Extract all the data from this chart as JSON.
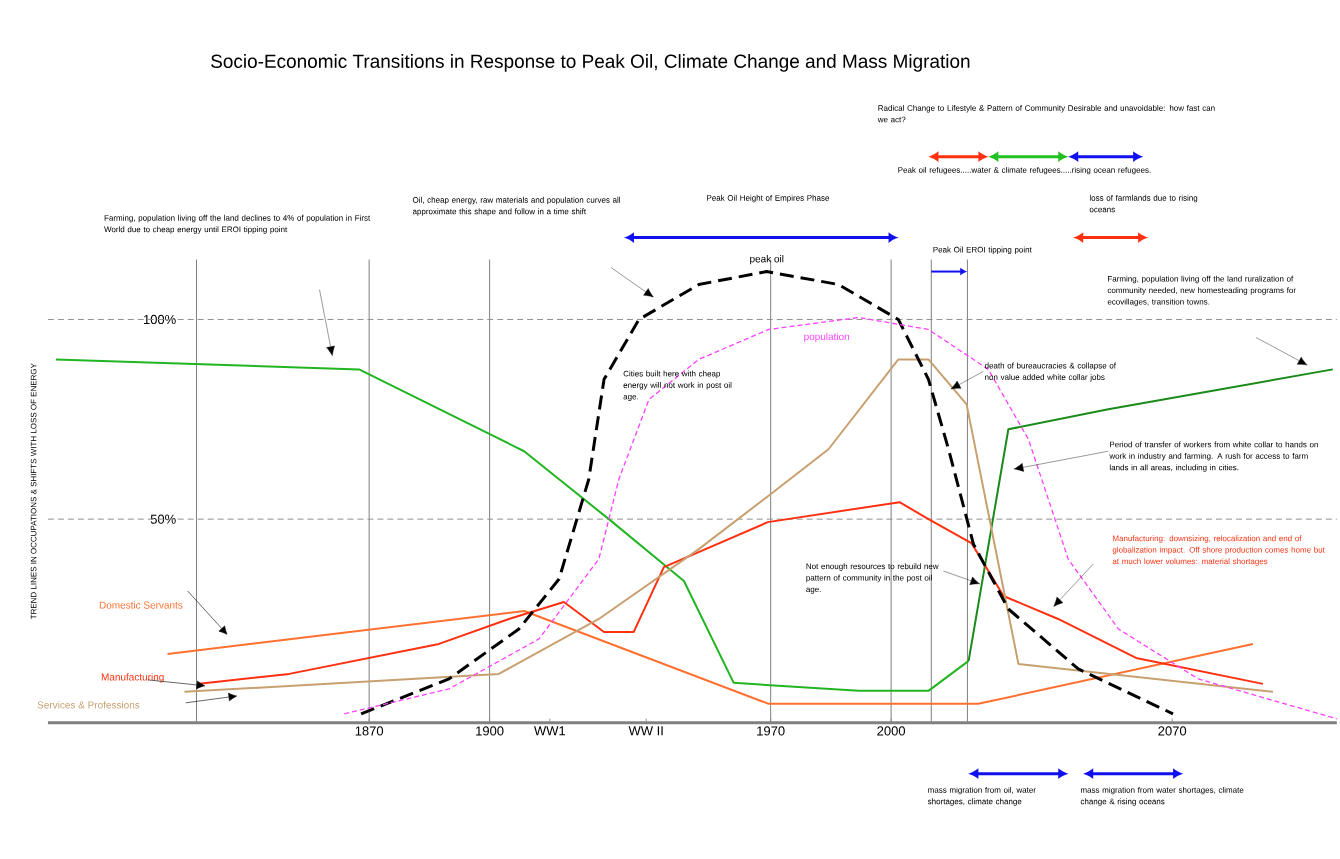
{
  "chart_data": {
    "type": "line",
    "title": "Socio-Economic Transitions in Response to Peak Oil, Climate Change and Mass Migration",
    "ylabel": "TREND LINES IN OCCUPATIONS & SHIFTS WITH LOSS OF ENERGY",
    "xlim": [
      1790,
      2111
    ],
    "ylim": [
      -1,
      115
    ],
    "xticks": [
      1870,
      1900,
      {
        "value": 1915,
        "label": "WW1"
      },
      {
        "value": 1939,
        "label": "WW II"
      },
      1970,
      2000,
      2070
    ],
    "yticks": [
      {
        "value": 50,
        "label": "50%"
      },
      {
        "value": 100,
        "label": "100%"
      }
    ],
    "marker": "none",
    "series": [
      {
        "color": "#22b522",
        "x": [
          1792,
          1867.5,
          1908.6,
          1929.7,
          1948.4,
          1960.8,
          1991.9,
          2009.3,
          2019.3
        ],
        "values": [
          90,
          87.5,
          67,
          50,
          34.5,
          9,
          7,
          7,
          14.5
        ]
      },
      {
        "color": "#1a8a1a",
        "x": [
          2019.3,
          2029.2,
          2054.1,
          2110
        ],
        "values": [
          14.5,
          72.5,
          77.5,
          87.5
        ]
      },
      {
        "name": "Domestic Servants",
        "color": "#ff7030",
        "x": [
          1819.8,
          1908.6,
          1969.5,
          2021.7,
          2090.1
        ],
        "values": [
          16.25,
          27,
          3.75,
          3.75,
          18.75
        ]
      },
      {
        "name": "Manufacturing",
        "color": "#ff3010",
        "x": [
          1827.7,
          1850.1,
          1887.4,
          1904.8,
          1918.5,
          1928.5,
          1935.9,
          1943.4,
          1969.3,
          2002.1,
          2009.3,
          2020,
          2028,
          2041.6,
          2061,
          2092.6
        ],
        "values": [
          8.75,
          11.25,
          18.75,
          25,
          29.25,
          21.75,
          21.75,
          38,
          49.25,
          54.25,
          50,
          44,
          30.75,
          25,
          15.25,
          8.75
        ]
      },
      {
        "name": "Services & Professions",
        "color": "#c8a070",
        "x": [
          1824,
          1902.3,
          1927.2,
          1952.1,
          1969,
          1984.4,
          2001.8,
          2009.3,
          2018.8,
          2031.7,
          2095.1
        ],
        "values": [
          6.75,
          11.25,
          25,
          42.5,
          55.5,
          67.5,
          90,
          90,
          78.75,
          13.75,
          6.75
        ]
      },
      {
        "name": "peak oil",
        "color": "#000000",
        "line_style": "dashed",
        "x": [
          1868,
          1889.9,
          1907.3,
          1917.3,
          1924.7,
          1928.5,
          1937.2,
          1952.1,
          1969,
          1986.9,
          2001.8,
          2009.3,
          2014.3,
          2020.5,
          2029.2,
          2046.6,
          2070.2
        ],
        "values": [
          1.25,
          10,
          22.5,
          35,
          60,
          85,
          100,
          108.75,
          112,
          108.75,
          100,
          85,
          67.5,
          43.75,
          27.5,
          12.5,
          1.25
        ]
      },
      {
        "name": "population",
        "color": "#ff40ff",
        "line_style": "dashed",
        "x": [
          1863.8,
          1889.9,
          1912.3,
          1927.2,
          1932.2,
          1939.7,
          1952.1,
          1969.5,
          1991.9,
          2009.3,
          2024.2,
          2034.2,
          2044.1,
          2056.6,
          2076.5,
          2111
        ],
        "values": [
          1.25,
          7.5,
          20,
          40,
          60,
          80,
          90,
          97.5,
          100.5,
          97.5,
          87.5,
          70,
          40,
          22.5,
          10,
          0
        ]
      }
    ],
    "ref_lines": [
      {
        "axis": "x",
        "value": 1827,
        "color": "#808080"
      },
      {
        "axis": "x",
        "value": 1870,
        "color": "#808080"
      },
      {
        "axis": "x",
        "value": 1900,
        "color": "#808080"
      },
      {
        "axis": "x",
        "value": 1970,
        "color": "#808080"
      },
      {
        "axis": "x",
        "value": 2000,
        "color": "#808080"
      },
      {
        "axis": "x",
        "value": 2010,
        "color": "#808080",
        "label": "Peak Oil EROI tipping point"
      },
      {
        "axis": "x",
        "value": 2019,
        "color": "#808080"
      },
      {
        "axis": "y",
        "value": 50,
        "color": "#909090",
        "line_style": "dashed"
      },
      {
        "axis": "y",
        "value": 100,
        "color": "#909090",
        "line_style": "dashed"
      }
    ],
    "annotations": [
      "Farming, population living off the land declines to 4% of population in First World due to cheap energy until EROI tipping point",
      "Oil, cheap energy, raw materials and population curves all approximate this shape and follow in a time shift",
      "Peak Oil Height of Empires Phase",
      "Radical Change to Lifestyle & Pattern of Community Desirable and unavoidable: how fast can we act?",
      "Peak oil refugees.....water & climate refugees.....rising ocean refugees.",
      "loss of farmlands due to rising oceans",
      "Cities built here with cheap energy will not work in post oil age.",
      "death of bureaucracies & collapse of non value added white collar jobs",
      "Farming, population living off the land ruralization of community needed, new homesteading programs for ecovillages, transition towns.",
      "Period of transfer of workers from white collar to hands on work in industry and farming. A rush for access to farm lands in all areas, including in cities.",
      "Manufacturing: downsizing, relocalization and end of globalization impact. Off shore production comes home but at much lower volumes: material shortages",
      "Not enough resources to rebuild new pattern of community in the post oil age.",
      "mass migration from oil, water shortages, climate change",
      "mass migration from water shortages, climate change & rising oceans"
    ]
  }
}
